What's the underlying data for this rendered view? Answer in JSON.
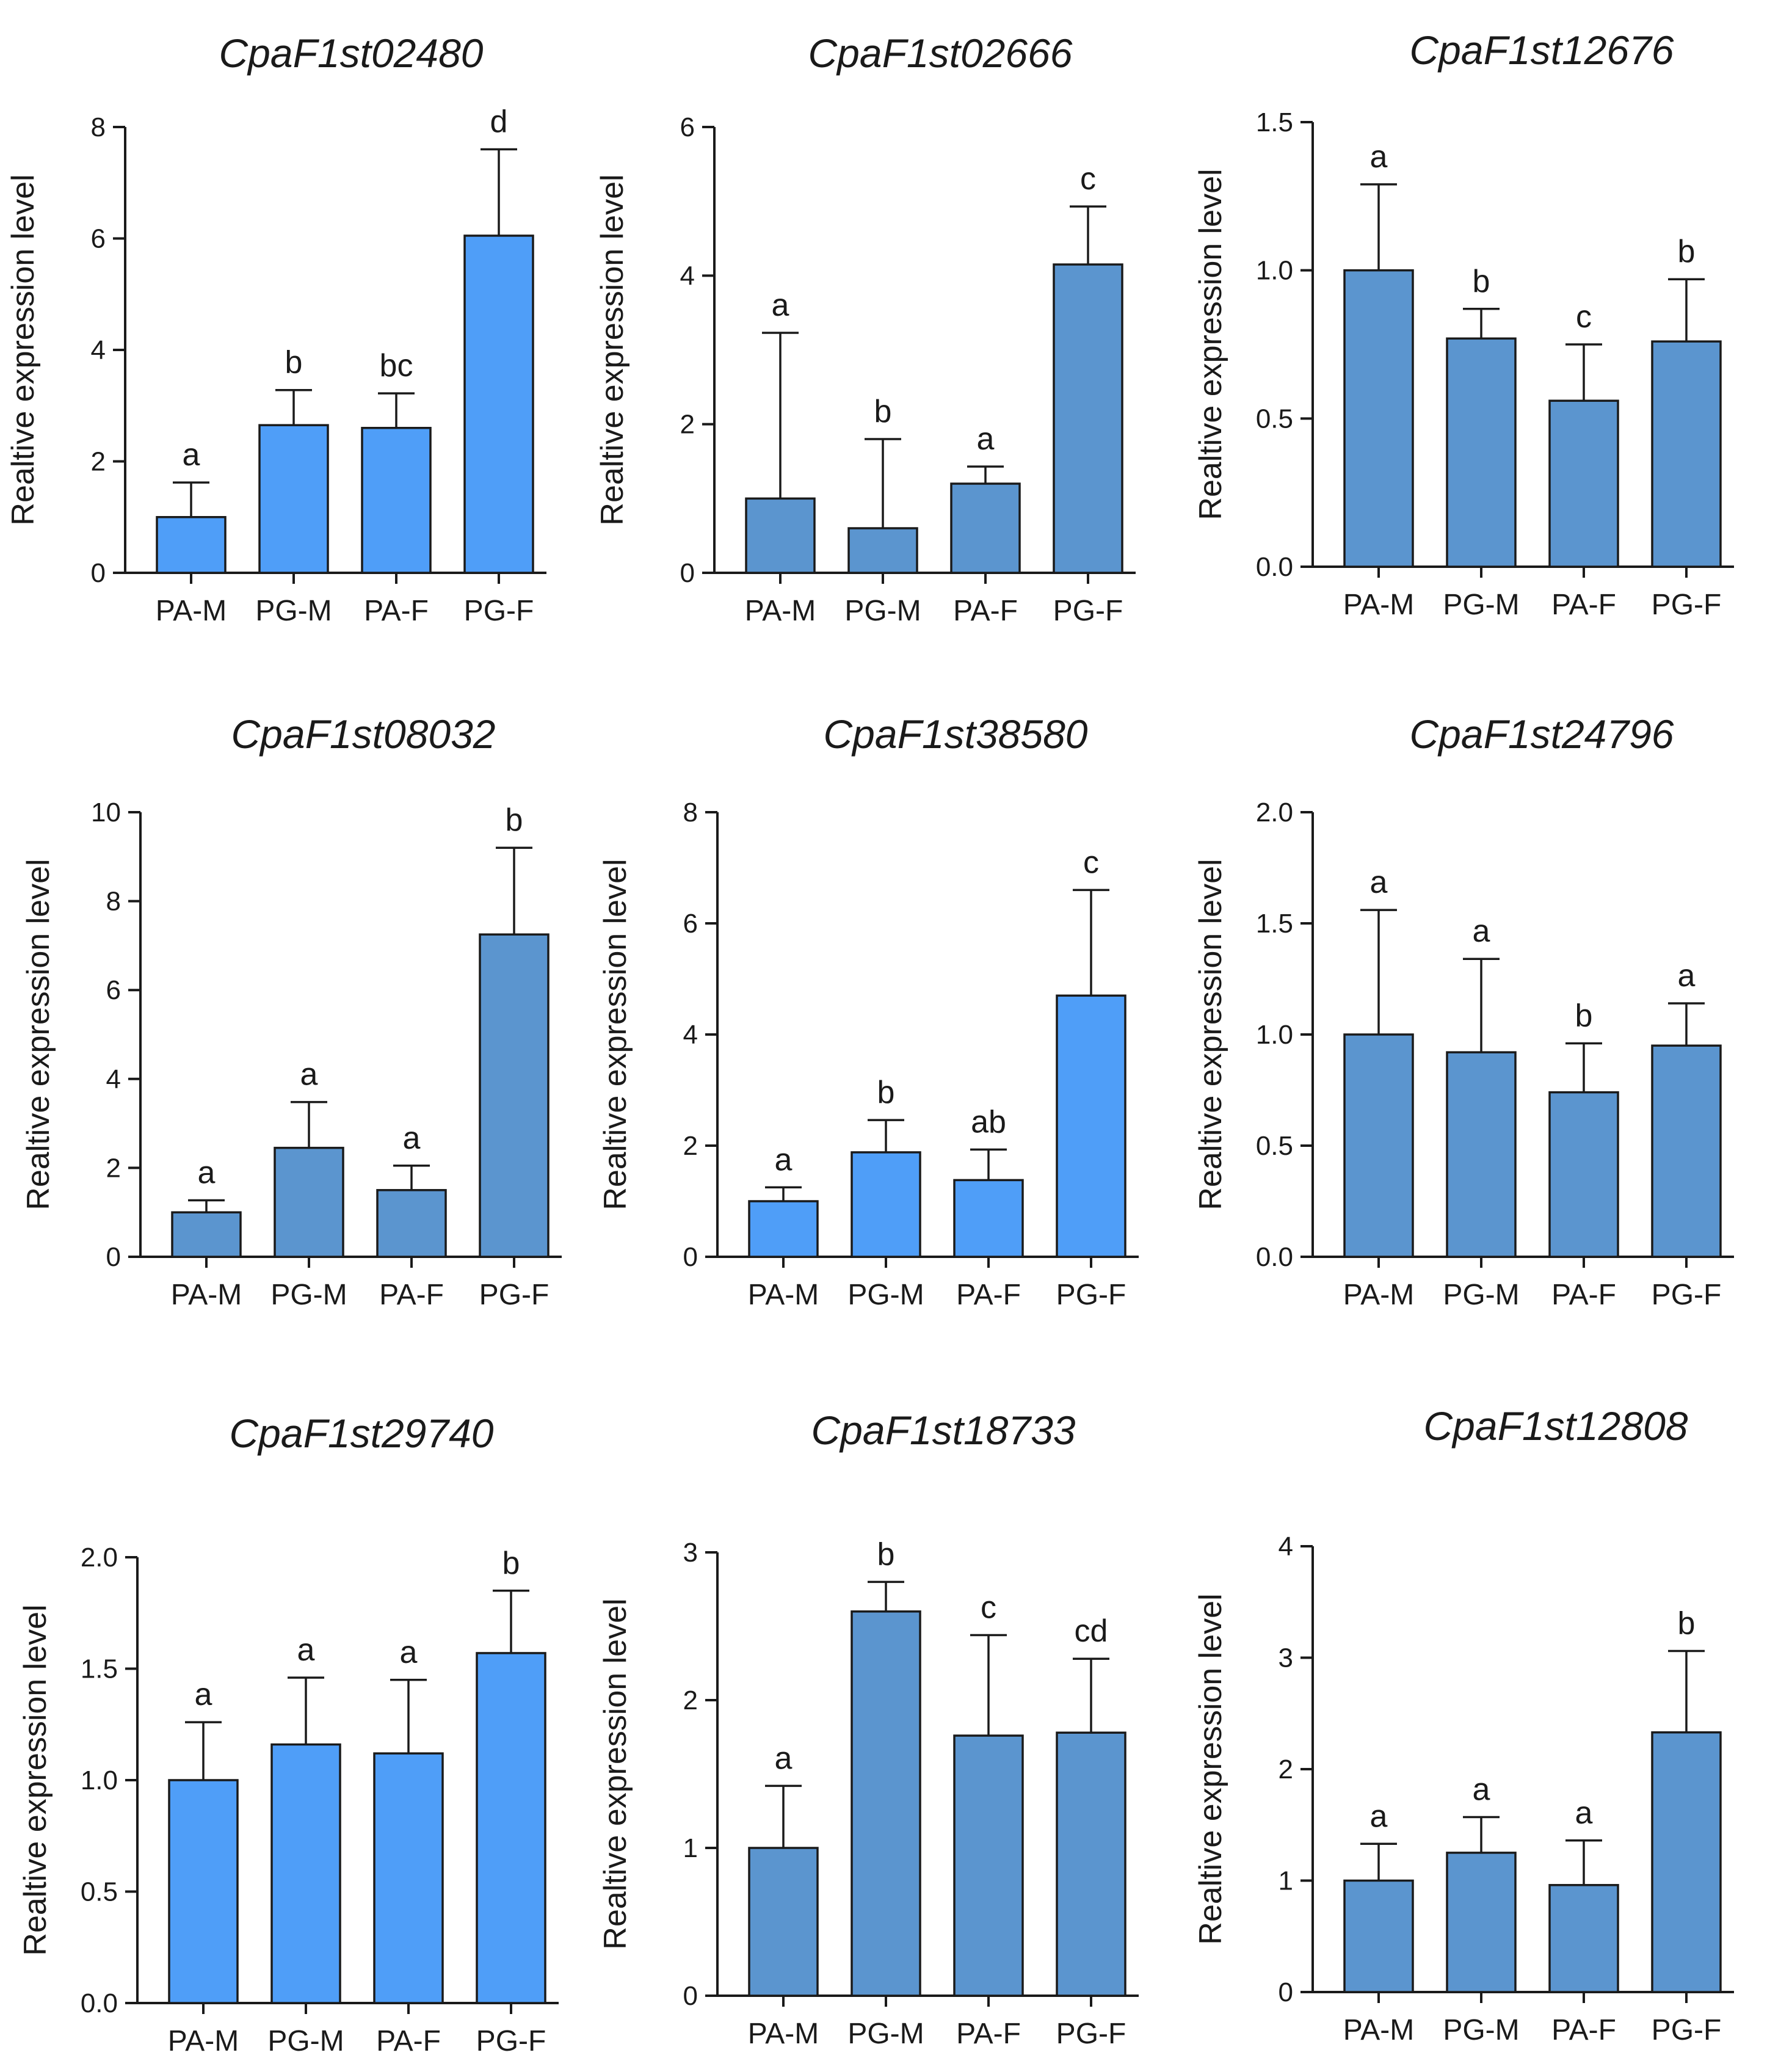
{
  "chart_data": [
    {
      "type": "bar",
      "title": "CpaF1st02480",
      "ylabel": "Realtive expression level",
      "categories": [
        "PA-M",
        "PG-M",
        "PA-F",
        "PG-F"
      ],
      "values": [
        1.0,
        2.65,
        2.6,
        6.05
      ],
      "errors": [
        0.62,
        0.63,
        0.62,
        1.55
      ],
      "significance": [
        "a",
        "b",
        "bc",
        "d"
      ],
      "ylim": [
        0,
        8
      ],
      "yticks": [
        "0",
        "2",
        "4",
        "6",
        "8"
      ],
      "bar_color": "#4f9ef8"
    },
    {
      "type": "bar",
      "title": "CpaF1st02666",
      "ylabel": "Realtive expression level",
      "categories": [
        "PA-M",
        "PG-M",
        "PA-F",
        "PG-F"
      ],
      "values": [
        1.0,
        0.6,
        1.2,
        4.15
      ],
      "errors": [
        2.23,
        1.2,
        0.23,
        0.78
      ],
      "significance": [
        "a",
        "b",
        "a",
        "c"
      ],
      "ylim": [
        0,
        6
      ],
      "yticks": [
        "0",
        "2",
        "4",
        "6"
      ],
      "bar_color": "#5b95cf"
    },
    {
      "type": "bar",
      "title": "CpaF1st12676",
      "ylabel": "Realtive expression level",
      "categories": [
        "PA-M",
        "PG-M",
        "PA-F",
        "PG-F"
      ],
      "values": [
        1.0,
        0.77,
        0.56,
        0.76
      ],
      "errors": [
        0.29,
        0.1,
        0.19,
        0.21
      ],
      "significance": [
        "a",
        "b",
        "c",
        "b"
      ],
      "ylim": [
        0,
        1.5
      ],
      "yticks": [
        "0.0",
        "0.5",
        "1.0",
        "1.5"
      ],
      "bar_color": "#5b95cf"
    },
    {
      "type": "bar",
      "title": "CpaF1st08032",
      "ylabel": "Realtive expression level",
      "categories": [
        "PA-M",
        "PG-M",
        "PA-F",
        "PG-F"
      ],
      "values": [
        1.0,
        2.45,
        1.5,
        7.25
      ],
      "errors": [
        0.27,
        1.03,
        0.55,
        1.95
      ],
      "significance": [
        "a",
        "a",
        "a",
        "b"
      ],
      "ylim": [
        0,
        10
      ],
      "yticks": [
        "0",
        "2",
        "4",
        "6",
        "8",
        "10"
      ],
      "bar_color": "#5b95cf"
    },
    {
      "type": "bar",
      "title": "CpaF1st38580",
      "ylabel": "Realtive expression level",
      "categories": [
        "PA-M",
        "PG-M",
        "PA-F",
        "PG-F"
      ],
      "values": [
        1.0,
        1.88,
        1.38,
        4.7
      ],
      "errors": [
        0.25,
        0.58,
        0.55,
        1.9
      ],
      "significance": [
        "a",
        "b",
        "ab",
        "c"
      ],
      "ylim": [
        0,
        8
      ],
      "yticks": [
        "0",
        "2",
        "4",
        "6",
        "8"
      ],
      "bar_color": "#4f9ef8"
    },
    {
      "type": "bar",
      "title": "CpaF1st24796",
      "ylabel": "Realtive expression level",
      "categories": [
        "PA-M",
        "PG-M",
        "PA-F",
        "PG-F"
      ],
      "values": [
        1.0,
        0.92,
        0.74,
        0.95
      ],
      "errors": [
        0.56,
        0.42,
        0.22,
        0.19
      ],
      "significance": [
        "a",
        "a",
        "b",
        "a"
      ],
      "ylim": [
        0,
        2.0
      ],
      "yticks": [
        "0.0",
        "0.5",
        "1.0",
        "1.5",
        "2.0"
      ],
      "bar_color": "#5b95cf"
    },
    {
      "type": "bar",
      "title": "CpaF1st29740",
      "ylabel": "Realtive expression level",
      "categories": [
        "PA-M",
        "PG-M",
        "PA-F",
        "PG-F"
      ],
      "values": [
        1.0,
        1.16,
        1.12,
        1.57
      ],
      "errors": [
        0.26,
        0.3,
        0.33,
        0.28
      ],
      "significance": [
        "a",
        "a",
        "a",
        "b"
      ],
      "ylim": [
        0,
        2.0
      ],
      "yticks": [
        "0.0",
        "0.5",
        "1.0",
        "1.5",
        "2.0"
      ],
      "bar_color": "#4f9ef8"
    },
    {
      "type": "bar",
      "title": "CpaF1st18733",
      "ylabel": "Realtive expression level",
      "categories": [
        "PA-M",
        "PG-M",
        "PA-F",
        "PG-F"
      ],
      "values": [
        1.0,
        2.6,
        1.76,
        1.78
      ],
      "errors": [
        0.42,
        0.2,
        0.68,
        0.5
      ],
      "significance": [
        "a",
        "b",
        "c",
        "cd"
      ],
      "ylim": [
        0,
        3
      ],
      "yticks": [
        "0",
        "1",
        "2",
        "3"
      ],
      "bar_color": "#5b95cf"
    },
    {
      "type": "bar",
      "title": "CpaF1st12808",
      "ylabel": "Realtive expression level",
      "categories": [
        "PA-M",
        "PG-M",
        "PA-F",
        "PG-F"
      ],
      "values": [
        1.0,
        1.25,
        0.96,
        2.33
      ],
      "errors": [
        0.33,
        0.32,
        0.4,
        0.73
      ],
      "significance": [
        "a",
        "a",
        "a",
        "b"
      ],
      "ylim": [
        0,
        4
      ],
      "yticks": [
        "0",
        "1",
        "2",
        "3",
        "4"
      ],
      "bar_color": "#5b95cf"
    }
  ]
}
